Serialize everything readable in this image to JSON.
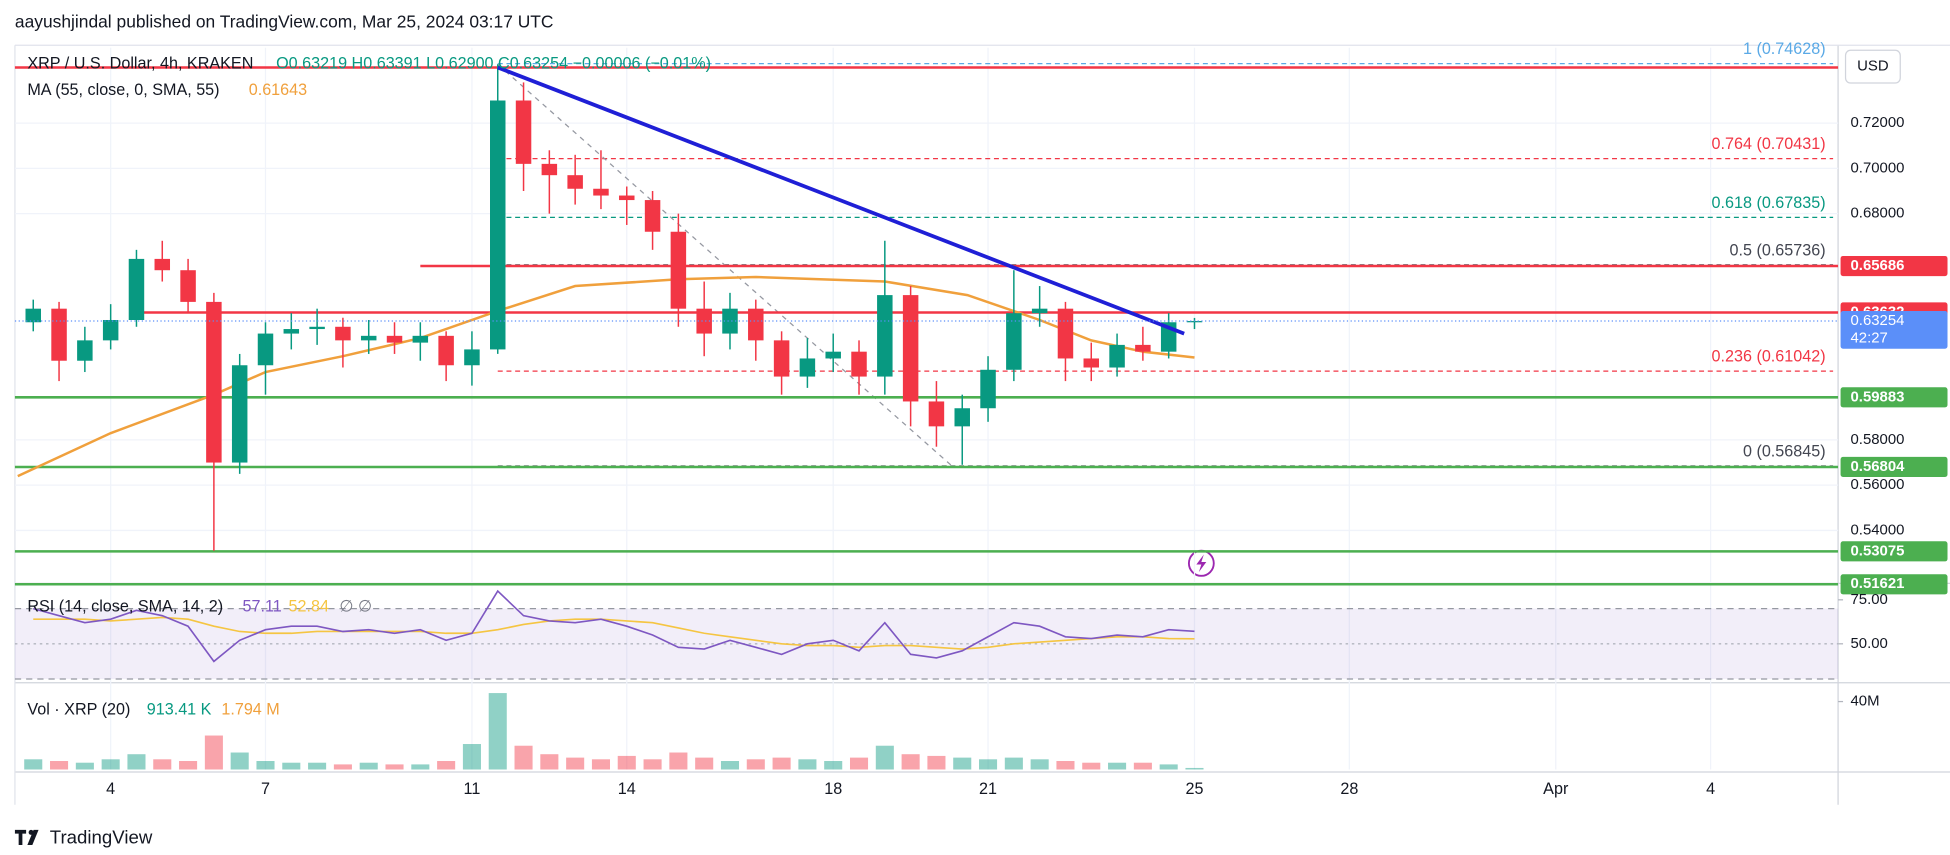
{
  "header": {
    "text": "aayushjindal published on TradingView.com, Mar 25, 2024 03:17 UTC"
  },
  "footer": {
    "logo_text": "TradingView"
  },
  "chart_data": [
    {
      "type": "candlestick",
      "title": "XRP / U.S. Dollar, 4h, KRAKEN",
      "ohlc_label": "O0.63219 H0.63391 L0.62900 C0.63254 −0.00006 (−0.01%)",
      "currency": "USD",
      "up_color": "#089981",
      "down_color": "#f23645",
      "x": [
        2.5,
        3,
        3.5,
        4,
        4.5,
        5,
        5.5,
        6,
        6.5,
        7,
        7.5,
        8,
        8.5,
        9,
        9.5,
        10,
        10.5,
        11,
        11.5,
        12,
        12.5,
        13,
        13.5,
        14,
        14.5,
        15,
        15.5,
        16,
        16.5,
        17,
        17.5,
        18,
        18.5,
        19,
        19.5,
        20,
        20.5,
        21,
        21.5,
        22,
        22.5,
        23,
        23.5,
        24,
        24.5,
        25
      ],
      "open": [
        0.632,
        0.638,
        0.615,
        0.624,
        0.633,
        0.66,
        0.655,
        0.641,
        0.57,
        0.613,
        0.627,
        0.629,
        0.63,
        0.624,
        0.626,
        0.623,
        0.626,
        0.613,
        0.62,
        0.73,
        0.702,
        0.697,
        0.691,
        0.688,
        0.686,
        0.672,
        0.638,
        0.627,
        0.638,
        0.624,
        0.608,
        0.616,
        0.619,
        0.608,
        0.644,
        0.597,
        0.586,
        0.594,
        0.611,
        0.636,
        0.638,
        0.616,
        0.612,
        0.622,
        0.619,
        0.63219
      ],
      "high": [
        0.642,
        0.641,
        0.63,
        0.64,
        0.664,
        0.668,
        0.66,
        0.645,
        0.618,
        0.632,
        0.636,
        0.638,
        0.634,
        0.633,
        0.632,
        0.632,
        0.628,
        0.628,
        0.746,
        0.738,
        0.708,
        0.706,
        0.708,
        0.692,
        0.69,
        0.68,
        0.65,
        0.645,
        0.642,
        0.628,
        0.625,
        0.627,
        0.624,
        0.668,
        0.648,
        0.606,
        0.6,
        0.617,
        0.655,
        0.648,
        0.641,
        0.623,
        0.627,
        0.63,
        0.636,
        0.63391
      ],
      "low": [
        0.628,
        0.606,
        0.61,
        0.62,
        0.63,
        0.65,
        0.636,
        0.531,
        0.565,
        0.6,
        0.62,
        0.622,
        0.612,
        0.618,
        0.618,
        0.615,
        0.606,
        0.604,
        0.618,
        0.69,
        0.68,
        0.684,
        0.682,
        0.675,
        0.664,
        0.63,
        0.617,
        0.62,
        0.615,
        0.6,
        0.603,
        0.61,
        0.6,
        0.6,
        0.586,
        0.577,
        0.569,
        0.588,
        0.606,
        0.63,
        0.606,
        0.606,
        0.608,
        0.615,
        0.616,
        0.629
      ],
      "close": [
        0.638,
        0.615,
        0.624,
        0.633,
        0.66,
        0.655,
        0.641,
        0.57,
        0.613,
        0.627,
        0.629,
        0.63,
        0.624,
        0.626,
        0.623,
        0.626,
        0.613,
        0.62,
        0.73,
        0.702,
        0.697,
        0.691,
        0.688,
        0.686,
        0.672,
        0.638,
        0.627,
        0.638,
        0.624,
        0.608,
        0.616,
        0.619,
        0.608,
        0.644,
        0.597,
        0.586,
        0.594,
        0.611,
        0.636,
        0.638,
        0.616,
        0.612,
        0.622,
        0.619,
        0.632,
        0.63254
      ],
      "xlim": [
        2.145,
        37.47
      ],
      "xticks": [
        4,
        7,
        11,
        14,
        18,
        21,
        25,
        28,
        {
          "value": 32,
          "label": "Apr"
        },
        {
          "value": 35,
          "label": "4"
        }
      ],
      "ylim": [
        0.5177,
        0.7533
      ],
      "yticks": [
        {
          "value": 0.54,
          "label": "0.54000"
        },
        {
          "value": 0.56,
          "label": "0.56000"
        },
        {
          "value": 0.58,
          "label": "0.58000"
        },
        {
          "value": 0.68,
          "label": "0.68000"
        },
        {
          "value": 0.7,
          "label": "0.70000"
        },
        {
          "value": 0.72,
          "label": "0.72000"
        }
      ],
      "grid": true,
      "moving_average": {
        "name": "MA (55, close, 0, SMA, 55)",
        "value_label": "0.61643",
        "color": "#f0a03c",
        "x": [
          2.2,
          4,
          6,
          7,
          8.5,
          10,
          11.5,
          13,
          15,
          16.5,
          19,
          20.6,
          22,
          23,
          24,
          25
        ],
        "values": [
          0.564,
          0.583,
          0.6,
          0.61,
          0.617,
          0.625,
          0.637,
          0.648,
          0.651,
          0.652,
          0.65,
          0.644,
          0.633,
          0.624,
          0.619,
          0.6164
        ]
      },
      "levels": [
        {
          "value": 0.7446,
          "color": "#f23645",
          "x_start": 2.145,
          "show_label": false
        },
        {
          "value": 0.65686,
          "color": "#f23645",
          "x_start": 10.0,
          "show_label": true
        },
        {
          "value": 0.63632,
          "color": "#f23645",
          "x_start": 4.63,
          "show_label": true
        },
        {
          "value": 0.59883,
          "color": "#4caf50",
          "x_start": 2.145,
          "show_label": true
        },
        {
          "value": 0.56804,
          "color": "#4caf50",
          "x_start": 2.145,
          "show_label": true
        },
        {
          "value": 0.53075,
          "color": "#4caf50",
          "x_start": 2.145,
          "show_label": true
        },
        {
          "value": 0.51621,
          "color": "#4caf50",
          "x_start": 2.145,
          "show_label": true
        }
      ],
      "fib_levels": [
        {
          "value": 0.74628,
          "label": "1 (0.74628)",
          "color": "#5aa9e6"
        },
        {
          "value": 0.70431,
          "label": "0.764 (0.70431)",
          "color": "#f23645"
        },
        {
          "value": 0.67835,
          "label": "0.618 (0.67835)",
          "color": "#089981"
        },
        {
          "value": 0.65736,
          "label": "0.5 (0.65736)",
          "color": "#434651"
        },
        {
          "value": 0.61042,
          "label": "0.236 (0.61042)",
          "color": "#f23645"
        },
        {
          "value": 0.56845,
          "label": "0 (0.56845)",
          "color": "#434651"
        }
      ],
      "fib_x_start": 11.5,
      "trend_line": {
        "color": "#1f1fd6",
        "x": [
          11.5,
          24.8
        ],
        "values": [
          0.7446,
          0.627
        ]
      },
      "fib_anchor": {
        "color": "#9598a1",
        "x": [
          11.5,
          20.3
        ],
        "values": [
          0.746,
          0.5685
        ]
      },
      "last_price": {
        "value": 0.63254,
        "countdown": "42:27",
        "color": "#5b8ff9"
      }
    },
    {
      "type": "line",
      "title": "RSI (14, close, SMA, 14, 2)",
      "extra_label": "∅ ∅",
      "x": [
        2.5,
        3,
        3.5,
        4,
        4.5,
        5,
        5.5,
        6,
        6.5,
        7,
        7.5,
        8,
        8.5,
        9,
        9.5,
        10,
        10.5,
        11,
        11.5,
        12,
        12.5,
        13,
        13.5,
        14,
        14.5,
        15,
        15.5,
        16,
        16.5,
        17,
        17.5,
        18,
        18.5,
        19,
        19.5,
        20,
        20.5,
        21,
        21.5,
        22,
        22.5,
        23,
        23.5,
        24,
        24.5,
        25
      ],
      "series": [
        {
          "color": "#7e57c2",
          "values": [
            70,
            66,
            62,
            64,
            69,
            66,
            60,
            40,
            52,
            58,
            60,
            60,
            57,
            58,
            56,
            58,
            52,
            56,
            80,
            66,
            63,
            62,
            64,
            60,
            55,
            48,
            47,
            52,
            48,
            44,
            50,
            52,
            46,
            62,
            44,
            42,
            46,
            54,
            62,
            60,
            54,
            53,
            55,
            54,
            58,
            57.11
          ]
        },
        {
          "color": "#f5c542",
          "values": [
            64,
            64,
            64,
            63,
            64,
            65,
            64,
            60,
            57,
            56,
            56,
            57,
            57,
            57,
            57,
            57,
            56,
            56,
            58,
            61,
            63,
            64,
            64,
            63,
            62,
            59,
            56,
            54,
            52,
            50,
            49,
            49,
            48,
            49,
            49,
            48,
            47,
            48,
            50,
            51,
            52,
            53,
            54,
            54,
            53,
            52.84
          ]
        }
      ],
      "band": [
        30,
        70
      ],
      "midline": 50,
      "ylim": [
        29.3,
        82.9
      ],
      "yticks": [
        {
          "value": 50,
          "label": "50.00"
        },
        {
          "value": 75,
          "label": "75.00"
        }
      ]
    },
    {
      "type": "bar",
      "title": "Vol · XRP (20)",
      "last_value_label": "913.41 K",
      "ma_label": "1.794 M",
      "x": [
        2.5,
        3,
        3.5,
        4,
        4.5,
        5,
        5.5,
        6,
        6.5,
        7,
        7.5,
        8,
        8.5,
        9,
        9.5,
        10,
        10.5,
        11,
        11.5,
        12,
        12.5,
        13,
        13.5,
        14,
        14.5,
        15,
        15.5,
        16,
        16.5,
        17,
        17.5,
        18,
        18.5,
        19,
        19.5,
        20,
        20.5,
        21,
        21.5,
        22,
        22.5,
        23,
        23.5,
        24,
        24.5,
        25
      ],
      "values": [
        6000000,
        5000000,
        4000000,
        6000000,
        9000000,
        6000000,
        5000000,
        20000000,
        10000000,
        5000000,
        4000000,
        4000000,
        3000000,
        4000000,
        3000000,
        3000000,
        5000000,
        15000000,
        45000000,
        14000000,
        9000000,
        7000000,
        6000000,
        8000000,
        6000000,
        10000000,
        7000000,
        5000000,
        6000000,
        7000000,
        6000000,
        5000000,
        7000000,
        14000000,
        9000000,
        8000000,
        7000000,
        6000000,
        7000000,
        6000000,
        5000000,
        4000000,
        4000000,
        4000000,
        3000000,
        913410
      ],
      "ylim": [
        0,
        49600000
      ],
      "yticks": [
        {
          "value": 40000000,
          "label": "40M"
        }
      ]
    }
  ]
}
